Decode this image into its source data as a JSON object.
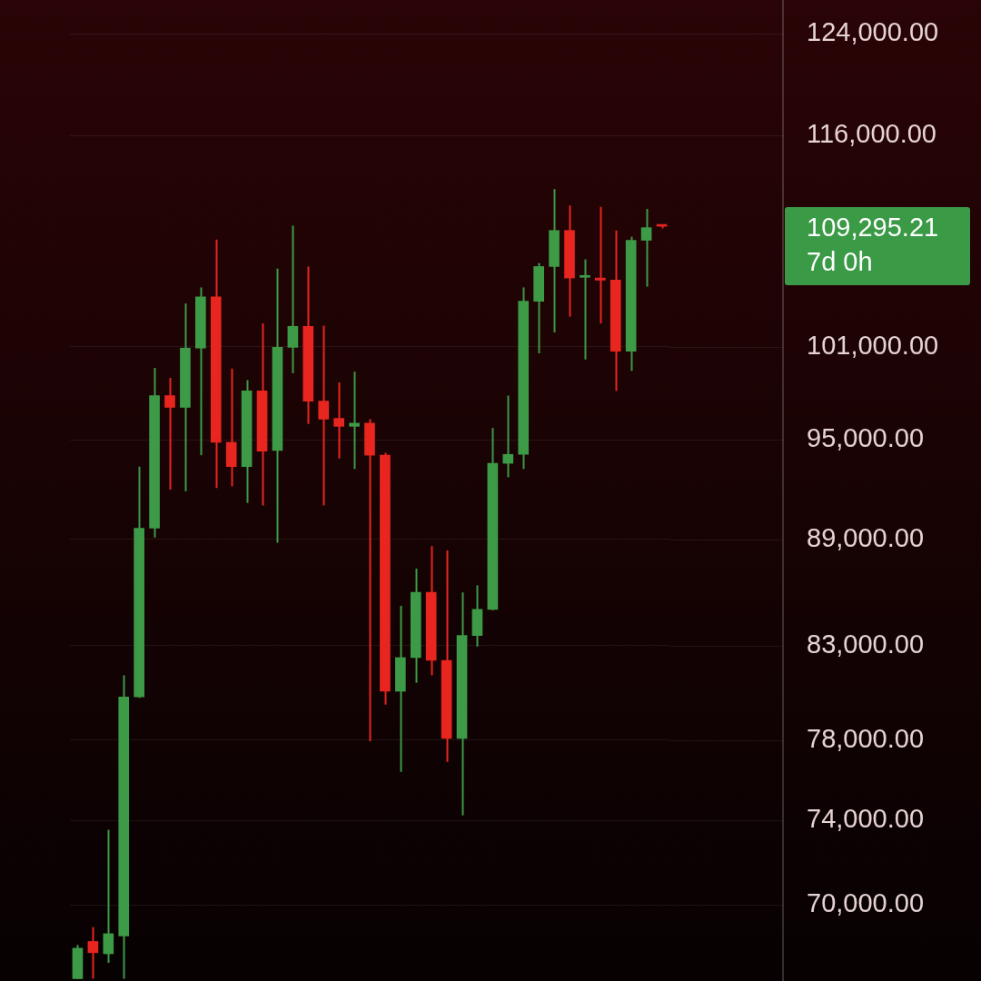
{
  "chart_data": {
    "type": "candlestick",
    "categories": [
      null,
      null,
      null,
      null,
      null,
      null,
      null,
      null,
      null,
      null,
      null,
      null,
      null,
      null,
      null,
      null,
      null,
      null,
      null,
      null,
      null,
      null,
      null,
      null,
      null,
      null,
      null,
      null,
      null,
      null,
      null,
      null,
      null,
      null,
      null,
      null,
      null,
      null,
      null
    ],
    "ohlc": [
      [
        66700,
        68200,
        66700,
        68050
      ],
      [
        68350,
        69000,
        66700,
        67850
      ],
      [
        67800,
        73550,
        67400,
        68700
      ],
      [
        68600,
        81400,
        66700,
        80250
      ],
      [
        80250,
        93350,
        80200,
        89650
      ],
      [
        89650,
        99600,
        89100,
        97800
      ],
      [
        97800,
        98950,
        91950,
        97050
      ],
      [
        97050,
        103900,
        91850,
        100900
      ],
      [
        100900,
        105000,
        94050,
        104350
      ],
      [
        104350,
        108350,
        92050,
        94850
      ],
      [
        94850,
        99550,
        92150,
        93350
      ],
      [
        93350,
        98800,
        91150,
        98100
      ],
      [
        98100,
        102550,
        91000,
        94300
      ],
      [
        94350,
        106300,
        88800,
        100950
      ],
      [
        100950,
        109350,
        99250,
        102350
      ],
      [
        102350,
        106450,
        96000,
        97450
      ],
      [
        97450,
        102400,
        91000,
        96300
      ],
      [
        96350,
        98650,
        93850,
        95850
      ],
      [
        95850,
        99350,
        93200,
        96050
      ],
      [
        96050,
        96300,
        77950,
        94050
      ],
      [
        94050,
        94200,
        79850,
        80550
      ],
      [
        80550,
        85200,
        76400,
        82350
      ],
      [
        82350,
        87300,
        81000,
        85950
      ],
      [
        85950,
        88600,
        81400,
        82200
      ],
      [
        82200,
        88350,
        76900,
        78100
      ],
      [
        78100,
        85950,
        74250,
        83550
      ],
      [
        83550,
        86350,
        82950,
        85000
      ],
      [
        85000,
        95750,
        84950,
        93550
      ],
      [
        93550,
        97800,
        92700,
        94100
      ],
      [
        94100,
        105000,
        93200,
        104050
      ],
      [
        104050,
        106700,
        100550,
        106450
      ],
      [
        106450,
        112000,
        101950,
        109000
      ],
      [
        109000,
        110800,
        103000,
        105650
      ],
      [
        105700,
        106950,
        100150,
        105800
      ],
      [
        105650,
        110700,
        102550,
        105500
      ],
      [
        105500,
        109000,
        98100,
        100700
      ],
      [
        100700,
        108550,
        99400,
        108300
      ],
      [
        108300,
        110550,
        105050,
        109200
      ],
      [
        109350,
        109400,
        109150,
        109300
      ]
    ],
    "colors": [
      "#3d9a46",
      "#e8251f",
      "#3d9a46",
      "#3d9a46",
      "#3d9a46",
      "#3d9a46",
      "#e8251f",
      "#3d9a46",
      "#3d9a46",
      "#e8251f",
      "#e8251f",
      "#3d9a46",
      "#e8251f",
      "#3d9a46",
      "#3d9a46",
      "#e8251f",
      "#e8251f",
      "#e8251f",
      "#3d9a46",
      "#e8251f",
      "#e8251f",
      "#3d9a46",
      "#3d9a46",
      "#e8251f",
      "#e8251f",
      "#3d9a46",
      "#3d9a46",
      "#3d9a46",
      "#3d9a46",
      "#3d9a46",
      "#3d9a46",
      "#3d9a46",
      "#e8251f",
      "#3d9a46",
      "#e8251f",
      "#e8251f",
      "#3d9a46",
      "#3d9a46",
      "#e8251f"
    ],
    "log": true,
    "ylim": [
      66600,
      126800
    ],
    "yticks": [
      {
        "value": 70000,
        "label": "70,000.00"
      },
      {
        "value": 74000,
        "label": "74,000.00"
      },
      {
        "value": 78000,
        "label": "78,000.00"
      },
      {
        "value": 83000,
        "label": "83,000.00"
      },
      {
        "value": 89000,
        "label": "89,000.00"
      },
      {
        "value": 95000,
        "label": "95,000.00"
      },
      {
        "value": 101000,
        "label": "101,000.00"
      },
      {
        "value": 116000,
        "label": "116,000.00"
      },
      {
        "value": 124000,
        "label": "124,000.00"
      }
    ],
    "grid": "y",
    "legend": false,
    "annotations": [
      "109,295.21",
      "7d 0h"
    ]
  }
}
